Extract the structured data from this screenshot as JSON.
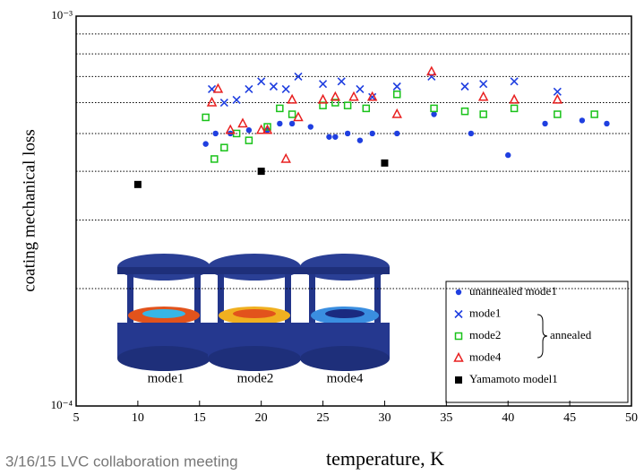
{
  "chart_data": {
    "type": "scatter",
    "y_label": "coating mechanical loss",
    "x_label": "temperature, K",
    "footer": "3/16/15  LVC collaboration meeting",
    "xlim": [
      5,
      50
    ],
    "xticks": [
      5,
      10,
      15,
      20,
      25,
      30,
      35,
      40,
      45,
      50
    ],
    "ylim": [
      0.0001,
      0.001
    ],
    "log_y": true,
    "yticks": [
      {
        "value": 0.0001,
        "label": "10⁻⁴"
      },
      {
        "value": 0.001,
        "label": "10⁻³"
      }
    ],
    "grid_lines": [
      0.0002,
      0.0003,
      0.0004,
      0.0005,
      0.0006,
      0.0007,
      0.0008,
      0.0009
    ],
    "legend_position": "lower right",
    "legend_group_label": "annealed",
    "image_labels": [
      "mode1",
      "mode2",
      "mode4"
    ],
    "series": [
      {
        "name": "unannealed mode1",
        "color": "#1f3fe0",
        "marker": "dot",
        "x": [
          15.5,
          16.3,
          17.5,
          19,
          20.5,
          21.5,
          22.5,
          24,
          25.5,
          26,
          27,
          28,
          29,
          31,
          34,
          37,
          40,
          43,
          46,
          48
        ],
        "values": [
          0.00047,
          0.0005,
          0.0005,
          0.00051,
          0.00051,
          0.00053,
          0.00053,
          0.00052,
          0.00049,
          0.00049,
          0.0005,
          0.00048,
          0.0005,
          0.0005,
          0.00056,
          0.0005,
          0.00044,
          0.00053,
          0.00054,
          0.00053
        ]
      },
      {
        "name": "mode1",
        "color": "#1f3fe0",
        "marker": "cross",
        "x": [
          16,
          17,
          18,
          19,
          20,
          21,
          22,
          23,
          25,
          26.5,
          28,
          29,
          31,
          33.8,
          36.5,
          38,
          40.5,
          44
        ],
        "values": [
          0.00065,
          0.0006,
          0.00061,
          0.00065,
          0.00068,
          0.00066,
          0.00065,
          0.0007,
          0.00067,
          0.00068,
          0.00065,
          0.00062,
          0.00066,
          0.0007,
          0.00066,
          0.00067,
          0.00068,
          0.00064
        ]
      },
      {
        "name": "mode2",
        "color": "#19c219",
        "marker": "square-open",
        "x": [
          15.5,
          16.2,
          17,
          18,
          19,
          20.5,
          21.5,
          22.5,
          25,
          26,
          27,
          28.5,
          31,
          34,
          36.5,
          38,
          40.5,
          44,
          47
        ],
        "values": [
          0.00055,
          0.00043,
          0.00046,
          0.0005,
          0.00048,
          0.00052,
          0.00058,
          0.00056,
          0.00059,
          0.0006,
          0.00059,
          0.00058,
          0.00063,
          0.00058,
          0.00057,
          0.00056,
          0.00058,
          0.00056,
          0.00056
        ]
      },
      {
        "name": "mode4",
        "color": "#e82020",
        "marker": "triangle-open",
        "x": [
          16,
          16.5,
          17.5,
          18.5,
          20,
          20.5,
          22,
          22.5,
          23,
          25,
          26,
          27.5,
          29,
          31,
          33.8,
          38,
          40.5,
          44
        ],
        "values": [
          0.0006,
          0.00065,
          0.00051,
          0.00053,
          0.00051,
          0.00051,
          0.00043,
          0.00061,
          0.00055,
          0.00061,
          0.00062,
          0.00062,
          0.00062,
          0.00056,
          0.00072,
          0.00062,
          0.00061,
          0.00061
        ]
      },
      {
        "name": "Yamamoto model1",
        "color": "#000000",
        "marker": "square",
        "x": [
          10,
          20,
          30
        ],
        "values": [
          0.00037,
          0.0004,
          0.00042
        ]
      }
    ]
  }
}
